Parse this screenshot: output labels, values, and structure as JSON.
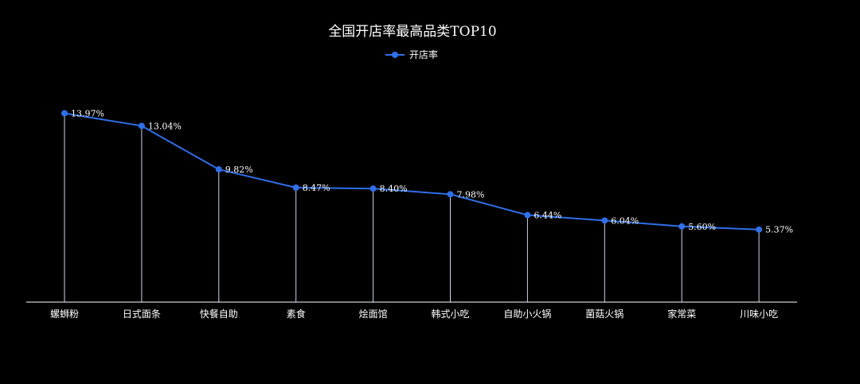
{
  "chart_data": {
    "type": "line",
    "title": "全国开店率最高品类TOP10",
    "categories": [
      "螺蛳粉",
      "日式面条",
      "快餐自助",
      "素食",
      "烩面馆",
      "韩式小吃",
      "自助小火锅",
      "菌菇火锅",
      "家常菜",
      "川味小吃"
    ],
    "series": [
      {
        "name": "开店率",
        "values": [
          13.97,
          13.04,
          9.82,
          8.47,
          8.4,
          7.98,
          6.44,
          6.04,
          5.6,
          5.37
        ],
        "labels": [
          "13.97%",
          "13.04%",
          "9.82%",
          "8.47%",
          "8.40%",
          "7.98%",
          "6.44%",
          "6.04%",
          "5.60%",
          "5.37%"
        ],
        "color": "#2f6fe8"
      }
    ],
    "xlabel": "",
    "ylabel": "",
    "ylim": [
      0,
      17
    ],
    "grid": false,
    "y_axis_visible": false,
    "drop_lines": true,
    "legend_position": "top-center",
    "background": "#000000",
    "axis_color": "#ffffff",
    "drop_line_color": "#c8d4ee"
  }
}
